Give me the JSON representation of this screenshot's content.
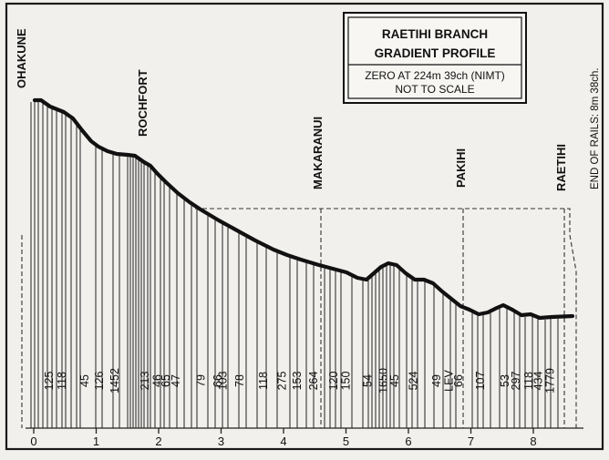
{
  "title_box": {
    "line1": "RAETIHI BRANCH",
    "line2": "GRADIENT PROFILE",
    "note1": "ZERO AT 224m 39ch (NIMT)",
    "note2": "NOT TO SCALE"
  },
  "end_note": "END OF RAILS:  8m 38ch.",
  "stations": [
    {
      "name": "OHAKUNE",
      "mile": 0.0
    },
    {
      "name": "ROCHFORT",
      "mile": 1.7
    },
    {
      "name": "MAKARANUI",
      "mile": 4.5
    },
    {
      "name": "PAKIHI",
      "mile": 6.7
    },
    {
      "name": "RAETIHI",
      "mile": 8.3
    }
  ],
  "x_ticks": [
    "0",
    "1",
    "2",
    "3",
    "4",
    "5",
    "6",
    "7",
    "8"
  ],
  "gradients": [
    {
      "label": "125",
      "mile": 0.25
    },
    {
      "label": "118",
      "mile": 0.45
    },
    {
      "label": "45",
      "mile": 0.82
    },
    {
      "label": "126",
      "mile": 1.05
    },
    {
      "label": "1452",
      "mile": 1.3
    },
    {
      "label": "213",
      "mile": 1.78
    },
    {
      "label": "46",
      "mile": 1.98
    },
    {
      "label": "65",
      "mile": 2.12
    },
    {
      "label": "47",
      "mile": 2.28
    },
    {
      "label": "79",
      "mile": 2.68
    },
    {
      "label": "66",
      "mile": 2.95
    },
    {
      "label": "103",
      "mile": 3.03
    },
    {
      "label": "78",
      "mile": 3.3
    },
    {
      "label": "118",
      "mile": 3.68
    },
    {
      "label": "275",
      "mile": 3.98
    },
    {
      "label": "153",
      "mile": 4.22
    },
    {
      "label": "264",
      "mile": 4.48
    },
    {
      "label": "120",
      "mile": 4.8
    },
    {
      "label": "150",
      "mile": 5.0
    },
    {
      "label": "54",
      "mile": 5.35
    },
    {
      "label": "1650",
      "mile": 5.6
    },
    {
      "label": "45",
      "mile": 5.78
    },
    {
      "label": "524",
      "mile": 6.08
    },
    {
      "label": "49",
      "mile": 6.45
    },
    {
      "label": "LEV",
      "mile": 6.65
    },
    {
      "label": "66",
      "mile": 6.8
    },
    {
      "label": "107",
      "mile": 7.15
    },
    {
      "label": "53",
      "mile": 7.55
    },
    {
      "label": "297",
      "mile": 7.72
    },
    {
      "label": "118",
      "mile": 7.93
    },
    {
      "label": "434",
      "mile": 8.08
    },
    {
      "label": "1779",
      "mile": 8.27
    }
  ]
}
